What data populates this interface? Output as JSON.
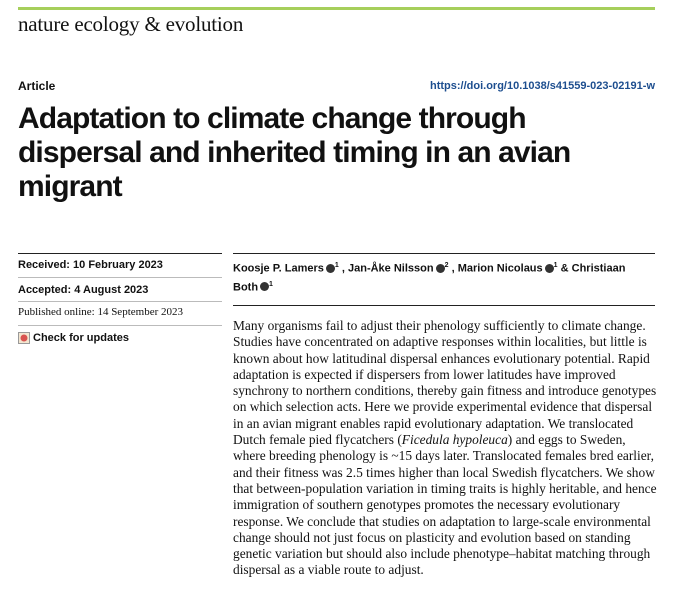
{
  "header": {
    "journal": "nature ecology & evolution",
    "kind": "Article",
    "doi": "https://doi.org/10.1038/s41559-023-02191-w"
  },
  "title": "Adaptation to climate change through dispersal and inherited timing in an avian migrant",
  "dates": {
    "received": "Received: 10 February 2023",
    "accepted": "Accepted: 4 August 2023",
    "published": "Published online: 14 September 2023",
    "check": "Check for updates"
  },
  "authors": [
    {
      "name": "Koosje P. Lamers",
      "affiliation": "1",
      "separator": ","
    },
    {
      "name": "Jan-Åke Nilsson",
      "affiliation": "2",
      "separator": ","
    },
    {
      "name": "Marion Nicolaus",
      "affiliation": "1",
      "separator": "&"
    },
    {
      "name": "Christiaan Both",
      "affiliation": "1"
    }
  ],
  "abstract": {
    "before": "Many organisms fail to adjust their phenology sufficiently to climate change. Studies have concentrated on adaptive responses within localities, but little is known about how latitudinal dispersal enhances evolutionary potential. Rapid adaptation is expected if dispersers from lower latitudes have improved synchrony to northern conditions, thereby gain fitness and introduce genotypes on which selection acts. Here we provide experimental evidence that dispersal in an avian migrant enables rapid evolutionary adaptation. We translocated Dutch female pied flycatchers (",
    "species": "Ficedula hypoleuca",
    "after": ") and eggs to Sweden, where breeding phenology is ~15 days later. Translocated females bred earlier, and their fitness was 2.5 times higher than local Swedish flycatchers. We show that between-population variation in timing traits is highly heritable, and hence immigration of southern genotypes promotes the necessary evolutionary response. We conclude that studies on adaptation to large-scale environmental change should not just focus on plasticity and evolution based on standing genetic variation but should also include phenotype–habitat matching through dispersal as a viable route to adjust."
  }
}
